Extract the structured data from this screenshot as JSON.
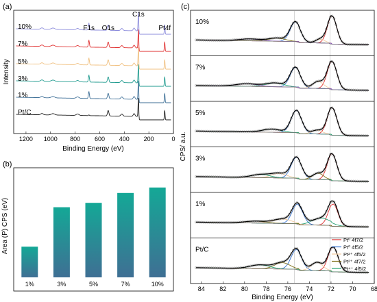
{
  "chart_data": [
    {
      "type": "line",
      "panel_label": "(a)",
      "xlabel": "Binding Energy (eV)",
      "ylabel": "Intensity",
      "xlim": [
        1300,
        0
      ],
      "x_ticks": [
        1200,
        1000,
        800,
        600,
        400,
        200,
        0
      ],
      "peak_labels": [
        {
          "text": "F1s",
          "x": 688
        },
        {
          "text": "O1s",
          "x": 531
        },
        {
          "text": "C1s",
          "x": 285
        },
        {
          "text": "Pt4f",
          "x": 71
        }
      ],
      "series": [
        {
          "name": "Pt/C",
          "color": "#1a1a1a",
          "values_note": ""
        },
        {
          "name": "1%",
          "color": "#3c6e96"
        },
        {
          "name": "3%",
          "color": "#1e9a8e"
        },
        {
          "name": "5%",
          "color": "#f0c080"
        },
        {
          "name": "7%",
          "color": "#e03030"
        },
        {
          "name": "10%",
          "color": "#8c8cdc"
        }
      ]
    },
    {
      "type": "bar",
      "panel_label": "(b)",
      "ylabel": "Area (P) CPS (eV)",
      "categories": [
        "1%",
        "3%",
        "5%",
        "7%",
        "10%"
      ],
      "values": [
        0.28,
        0.64,
        0.68,
        0.77,
        0.82
      ],
      "ylim": [
        0,
        1
      ],
      "gradient": {
        "top": "#14a896",
        "bottom": "#3f6f94"
      }
    },
    {
      "type": "line",
      "panel_label": "(c)",
      "xlabel": "Binding Energy (eV)",
      "ylabel": "CPS/ a.u.",
      "xlim": [
        85,
        68
      ],
      "x_ticks": [
        84,
        82,
        80,
        78,
        76,
        74,
        72,
        70,
        68
      ],
      "reference_lines": [
        75.4,
        72.1
      ],
      "legend": {
        "placement": "bottom-right",
        "entries": [
          {
            "label": "Pt⁰ 4f7/2",
            "color": "#e03030"
          },
          {
            "label": "Pt⁰ 4f5/2",
            "color": "#2f6fd0"
          },
          {
            "label": "Pt²⁺ 4f5/2",
            "color": "#f3cba0"
          },
          {
            "label": "Pt²⁺ 4f7/2",
            "color": "#7a6a10"
          },
          {
            "label": "Pt⁴⁺ 4f5/2",
            "color": "#20a070"
          }
        ]
      },
      "panels": [
        {
          "name": "10%",
          "components": [
            {
              "center": 71.9,
              "amp": 0.88,
              "w": 0.6,
              "color": "#e03030"
            },
            {
              "center": 75.3,
              "amp": 0.62,
              "w": 0.68,
              "color": "#2f6fd0"
            },
            {
              "center": 73.0,
              "amp": 0.12,
              "w": 0.6,
              "color": "#f3cba0"
            },
            {
              "center": 77.0,
              "amp": 0.1,
              "w": 1.1,
              "color": "#7a6a10"
            },
            {
              "center": 79.5,
              "amp": 0.06,
              "w": 1.4,
              "color": "#8a55c8"
            }
          ]
        },
        {
          "name": "7%",
          "components": [
            {
              "center": 71.9,
              "amp": 0.88,
              "w": 0.62,
              "color": "#e03030"
            },
            {
              "center": 75.3,
              "amp": 0.62,
              "w": 0.68,
              "color": "#2f6fd0"
            },
            {
              "center": 73.2,
              "amp": 0.22,
              "w": 0.7,
              "color": "#f3cba0"
            },
            {
              "center": 77.2,
              "amp": 0.12,
              "w": 1.2,
              "color": "#20a070"
            },
            {
              "center": 79.8,
              "amp": 0.08,
              "w": 1.4,
              "color": "#8a55c8"
            }
          ]
        },
        {
          "name": "5%",
          "components": [
            {
              "center": 71.9,
              "amp": 0.86,
              "w": 0.62,
              "color": "#e03030"
            },
            {
              "center": 75.2,
              "amp": 0.7,
              "w": 0.7,
              "color": "#2f6fd0"
            },
            {
              "center": 73.3,
              "amp": 0.12,
              "w": 0.7,
              "color": "#f3cba0"
            },
            {
              "center": 77.5,
              "amp": 0.1,
              "w": 1.2,
              "color": "#20a070"
            }
          ]
        },
        {
          "name": "3%",
          "components": [
            {
              "center": 71.9,
              "amp": 0.84,
              "w": 0.62,
              "color": "#e03030"
            },
            {
              "center": 75.2,
              "amp": 0.66,
              "w": 0.7,
              "color": "#2f6fd0"
            },
            {
              "center": 73.2,
              "amp": 0.2,
              "w": 0.7,
              "color": "#7a6a10"
            },
            {
              "center": 76.8,
              "amp": 0.14,
              "w": 1.0,
              "color": "#f3cba0"
            },
            {
              "center": 78.5,
              "amp": 0.1,
              "w": 1.2,
              "color": "#20a070"
            }
          ]
        },
        {
          "name": "1%",
          "components": [
            {
              "center": 71.8,
              "amp": 0.7,
              "w": 0.62,
              "color": "#e03030"
            },
            {
              "center": 75.1,
              "amp": 0.62,
              "w": 0.7,
              "color": "#2f6fd0"
            },
            {
              "center": 72.9,
              "amp": 0.22,
              "w": 1.2,
              "color": "#20a070"
            },
            {
              "center": 76.5,
              "amp": 0.14,
              "w": 1.2,
              "color": "#f3cba0"
            },
            {
              "center": 79.0,
              "amp": 0.06,
              "w": 1.4,
              "color": "#7a6a10"
            }
          ]
        },
        {
          "name": "Pt/C",
          "components": [
            {
              "center": 71.8,
              "amp": 0.78,
              "w": 0.64,
              "color": "#e03030"
            },
            {
              "center": 75.2,
              "amp": 0.62,
              "w": 0.7,
              "color": "#2f6fd0"
            },
            {
              "center": 73.3,
              "amp": 0.26,
              "w": 0.75,
              "color": "#f3cba0"
            },
            {
              "center": 76.5,
              "amp": 0.2,
              "w": 1.0,
              "color": "#7a6a10"
            },
            {
              "center": 78.6,
              "amp": 0.12,
              "w": 1.3,
              "color": "#20a070"
            }
          ]
        }
      ]
    }
  ]
}
